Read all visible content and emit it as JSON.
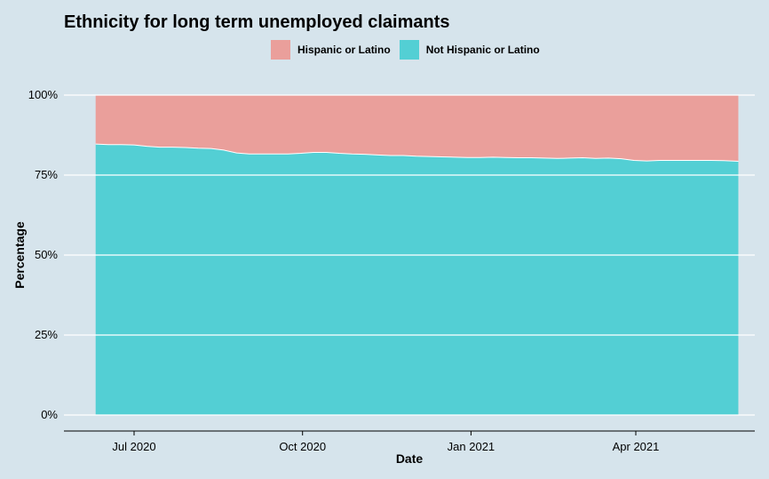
{
  "chart_data": {
    "type": "area",
    "stacked": "percent",
    "title": "Ethnicity for long term unemployed claimants",
    "xlabel": "Date",
    "ylabel": "Percentage",
    "y_ticks": [
      "0%",
      "25%",
      "50%",
      "75%",
      "100%"
    ],
    "x_ticks": [
      {
        "date": "2020-07-01",
        "label": "Jul 2020"
      },
      {
        "date": "2020-10-01",
        "label": "Oct 2020"
      },
      {
        "date": "2021-01-01",
        "label": "Jan 2021"
      },
      {
        "date": "2021-04-01",
        "label": "Apr 2021"
      }
    ],
    "xlim": [
      "2020-06-10",
      "2021-05-27"
    ],
    "ylim": [
      0,
      100
    ],
    "legend_position": "top",
    "grid": {
      "horizontal": true,
      "vertical": false
    },
    "series": [
      {
        "name": "Hispanic or Latino",
        "color": "#ea9f9b"
      },
      {
        "name": "Not Hispanic or Latino",
        "color": "#53cfd4"
      }
    ],
    "dates": [
      "2020-06-10",
      "2020-06-17",
      "2020-06-24",
      "2020-07-01",
      "2020-07-08",
      "2020-07-15",
      "2020-07-22",
      "2020-07-29",
      "2020-08-05",
      "2020-08-12",
      "2020-08-19",
      "2020-08-26",
      "2020-09-02",
      "2020-09-09",
      "2020-09-16",
      "2020-09-23",
      "2020-09-30",
      "2020-10-07",
      "2020-10-14",
      "2020-10-21",
      "2020-10-28",
      "2020-11-04",
      "2020-11-11",
      "2020-11-18",
      "2020-11-25",
      "2020-12-02",
      "2020-12-09",
      "2020-12-16",
      "2020-12-23",
      "2020-12-30",
      "2021-01-06",
      "2021-01-13",
      "2021-01-20",
      "2021-01-27",
      "2021-02-03",
      "2021-02-10",
      "2021-02-17",
      "2021-02-24",
      "2021-03-03",
      "2021-03-10",
      "2021-03-17",
      "2021-03-24",
      "2021-03-31",
      "2021-04-07",
      "2021-04-14",
      "2021-04-21",
      "2021-04-28",
      "2021-05-05",
      "2021-05-12",
      "2021-05-19",
      "2021-05-27"
    ],
    "not_hispanic_pct": [
      84.7,
      84.5,
      84.5,
      84.4,
      84.0,
      83.7,
      83.7,
      83.6,
      83.4,
      83.3,
      82.8,
      81.9,
      81.6,
      81.6,
      81.6,
      81.6,
      81.8,
      82.1,
      82.1,
      81.8,
      81.6,
      81.5,
      81.3,
      81.1,
      81.1,
      80.9,
      80.8,
      80.7,
      80.6,
      80.5,
      80.5,
      80.6,
      80.5,
      80.4,
      80.4,
      80.3,
      80.2,
      80.3,
      80.4,
      80.2,
      80.3,
      80.1,
      79.6,
      79.4,
      79.6,
      79.6,
      79.6,
      79.6,
      79.6,
      79.5,
      79.3
    ]
  }
}
